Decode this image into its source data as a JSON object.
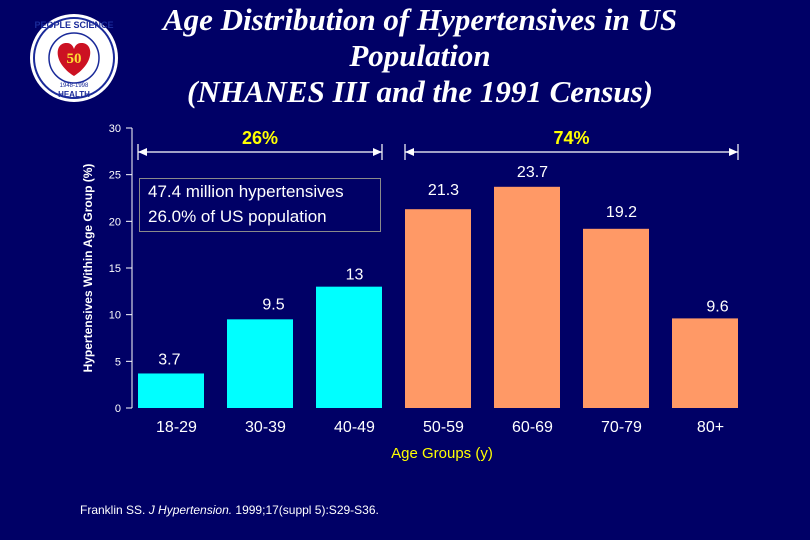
{
  "title": {
    "line1": "Age Distribution of Hypertensives in US",
    "line2": "Population",
    "line3": "(NHANES III and the 1991 Census)"
  },
  "logo": {
    "top_text": "PEOPLE  SCIENCE",
    "years": "1948-1998",
    "bottom_text": "HEALTH",
    "center_mark": "50"
  },
  "chart_data": {
    "type": "bar",
    "categories": [
      "18-29",
      "30-39",
      "40-49",
      "50-59",
      "60-69",
      "70-79",
      "80+"
    ],
    "values": [
      3.7,
      9.5,
      13,
      21.3,
      23.7,
      19.2,
      9.6
    ],
    "value_labels": [
      "3.7",
      "9.5",
      "13",
      "21.3",
      "23.7",
      "19.2",
      "9.6"
    ],
    "bar_colors": [
      "#00ffff",
      "#00ffff",
      "#00ffff",
      "#ff9966",
      "#ff9966",
      "#ff9966",
      "#ff9966"
    ],
    "ylabel": "Hypertensives Within Age Group (%)",
    "xlabel": "Age Groups (y)",
    "ylim": [
      0,
      30
    ],
    "yticks": [
      "0",
      "5",
      "10",
      "15",
      "20",
      "25",
      "30"
    ],
    "grid": false,
    "brackets": [
      {
        "label": "26%",
        "from": "18-29",
        "to": "40-49"
      },
      {
        "label": "74%",
        "from": "50-59",
        "to": "80+"
      }
    ],
    "annotation": {
      "line1": "47.4 million hypertensives",
      "line2": "26.0% of US population"
    }
  },
  "citation": {
    "prefix": "Franklin SS. ",
    "journal": "J Hypertension.",
    "suffix": " 1999;17(suppl 5):S29-S36."
  },
  "colors": {
    "background": "#000066",
    "young_bars": "#00ffff",
    "older_bars": "#ff9966",
    "text": "#ffffff"
  }
}
